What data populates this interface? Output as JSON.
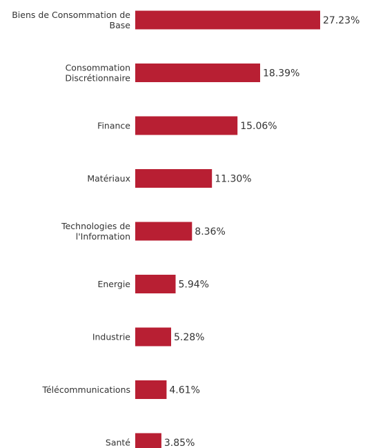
{
  "chart_data": {
    "type": "bar",
    "orientation": "horizontal",
    "categories": [
      [
        "Biens de Consommation de",
        "Base"
      ],
      [
        "Consommation",
        "Discrétionnaire"
      ],
      [
        "Finance"
      ],
      [
        "Matériaux"
      ],
      [
        "Technologies de",
        "l'Information"
      ],
      [
        "Energie"
      ],
      [
        "Industrie"
      ],
      [
        "Télécommunications"
      ],
      [
        "Santé"
      ]
    ],
    "values": [
      27.23,
      18.39,
      15.06,
      11.3,
      8.36,
      5.94,
      5.28,
      4.61,
      3.85
    ],
    "value_labels": [
      "27.23%",
      "18.39%",
      "15.06%",
      "11.30%",
      "8.36%",
      "5.94%",
      "5.28%",
      "4.61%",
      "3.85%"
    ],
    "unit": "%",
    "title": "",
    "xlabel": "",
    "ylabel": "",
    "grid": false,
    "legend": "none",
    "bar_color": "#b81f33"
  }
}
